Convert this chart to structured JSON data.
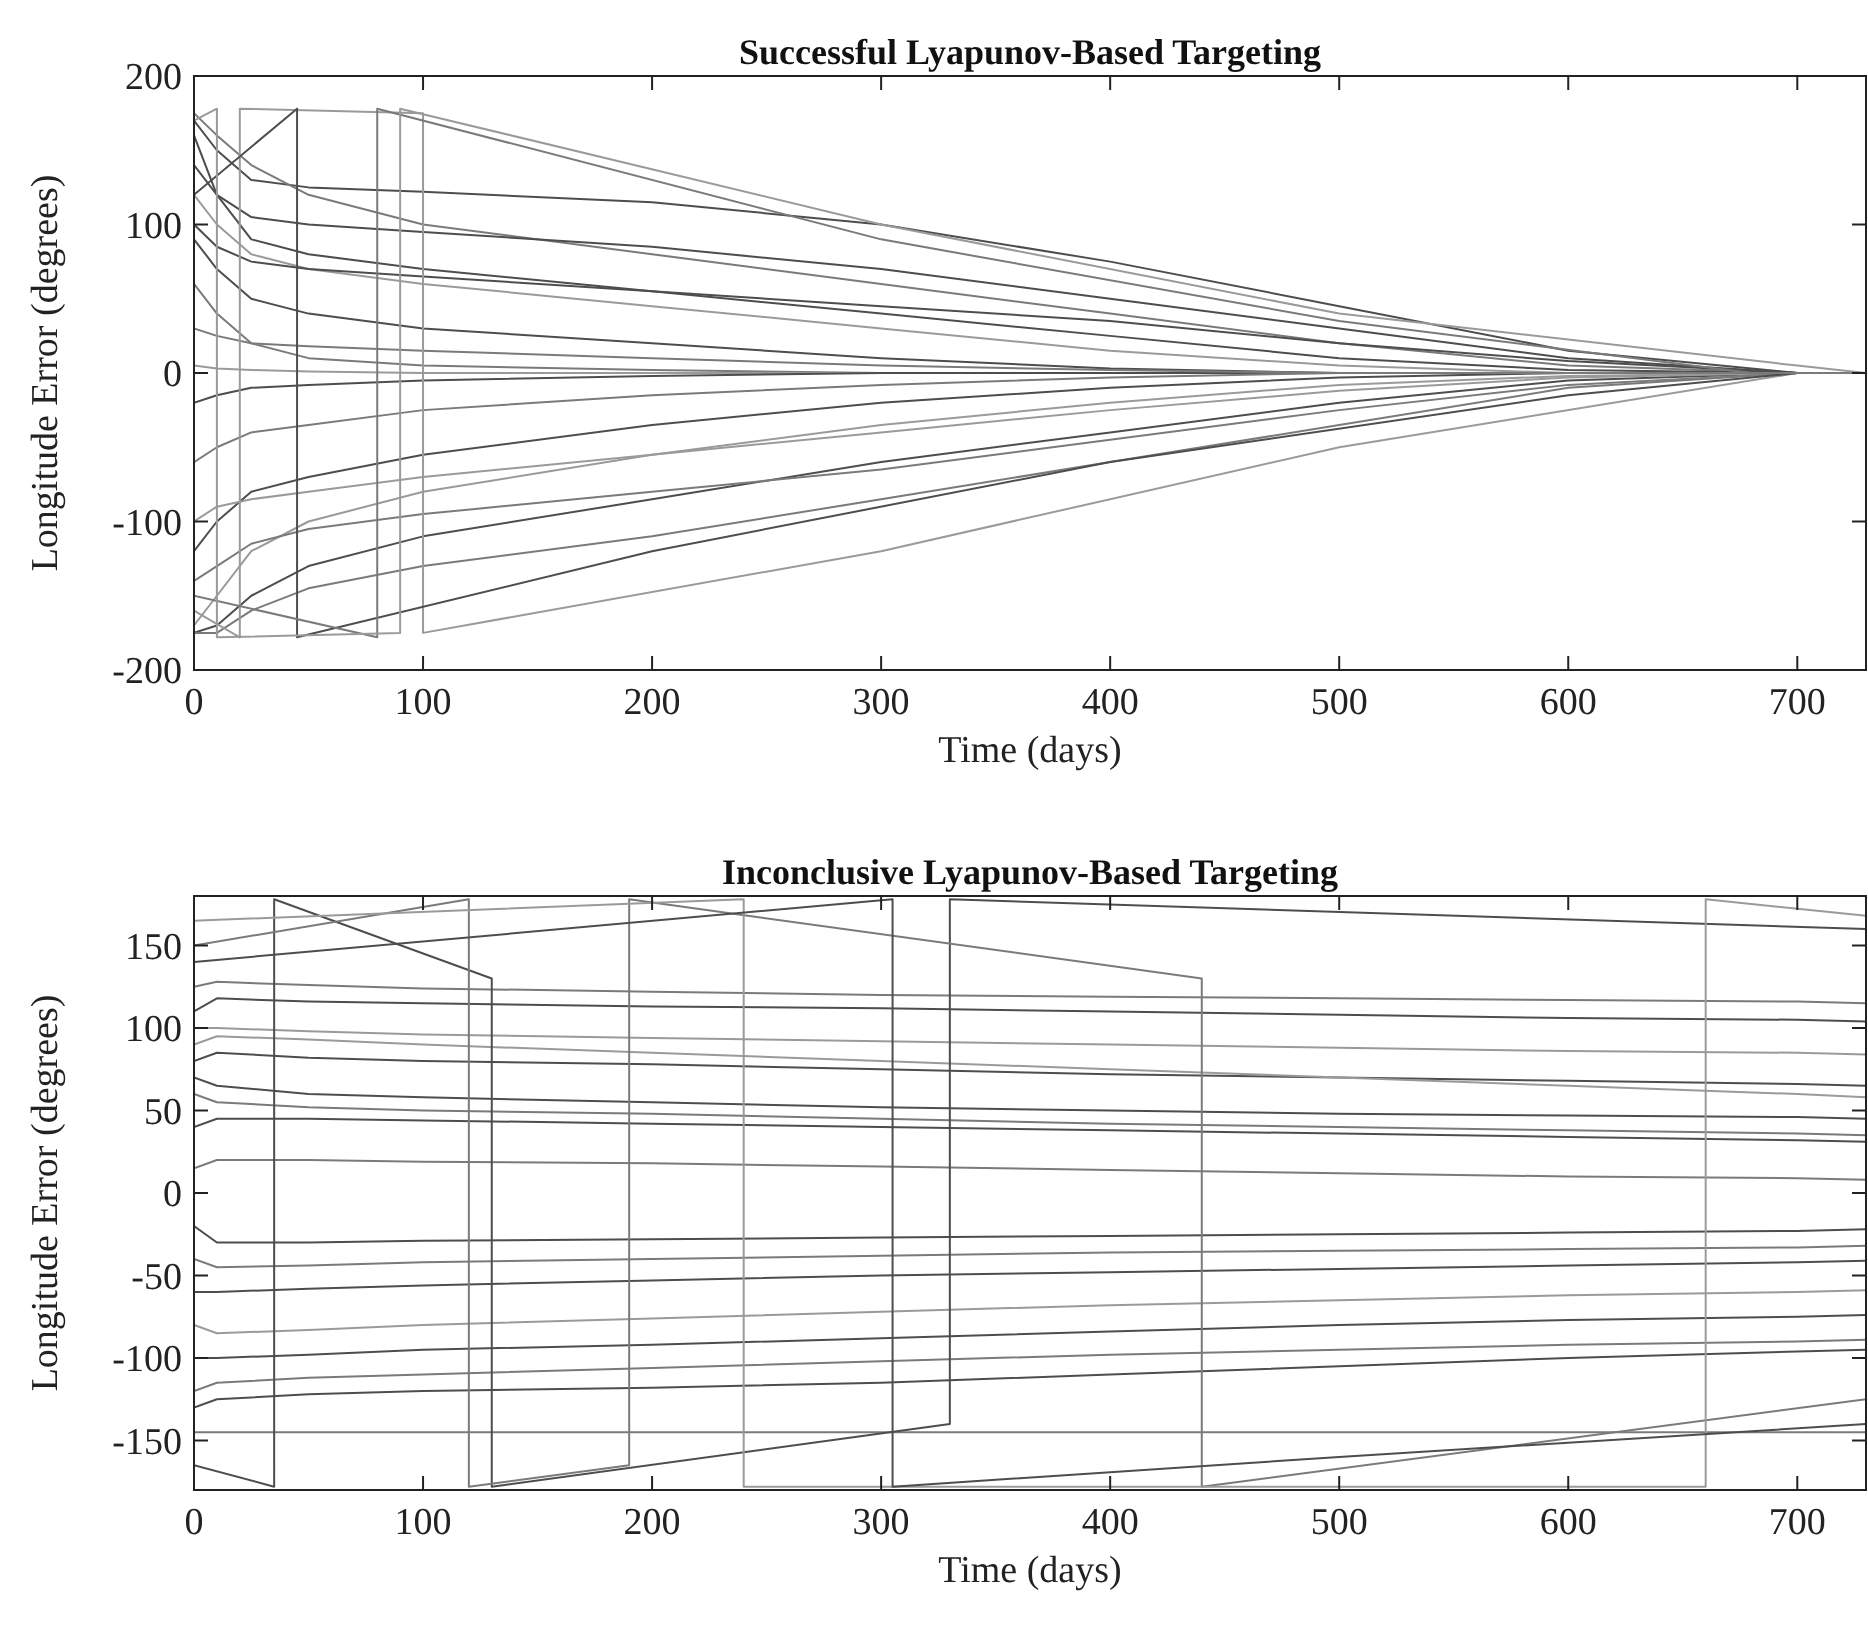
{
  "chart_data": [
    {
      "type": "line",
      "title": "Successful Lyapunov-Based Targeting",
      "xlabel": "Time (days)",
      "ylabel": "Longitude Error (degrees)",
      "xlim": [
        0,
        730
      ],
      "ylim": [
        -200,
        200
      ],
      "xticks": [
        0,
        100,
        200,
        300,
        400,
        500,
        600,
        700
      ],
      "yticks": [
        -200,
        -100,
        0,
        100,
        200
      ],
      "x": [
        0,
        10,
        25,
        50,
        100,
        200,
        300,
        400,
        500,
        600,
        700,
        730
      ],
      "series": [
        {
          "color": "#4d4d4d",
          "values": [
            170,
            150,
            130,
            125,
            122,
            115,
            100,
            75,
            45,
            15,
            0,
            0
          ]
        },
        {
          "color": "#7a7a7a",
          "values": [
            175,
            160,
            140,
            120,
            100,
            80,
            60,
            40,
            20,
            5,
            0,
            0
          ]
        },
        {
          "color": "#4d4d4d",
          "values": [
            160,
            120,
            90,
            80,
            70,
            55,
            40,
            25,
            10,
            2,
            0,
            0
          ]
        },
        {
          "color": "#9a9a9a",
          "values": [
            120,
            100,
            80,
            70,
            60,
            45,
            30,
            15,
            5,
            0,
            0,
            0
          ]
        },
        {
          "color": "#4d4d4d",
          "values": [
            90,
            70,
            50,
            40,
            30,
            20,
            10,
            3,
            0,
            0,
            0,
            0
          ]
        },
        {
          "color": "#7a7a7a",
          "values": [
            60,
            40,
            20,
            10,
            5,
            2,
            0,
            0,
            0,
            0,
            0,
            0
          ]
        },
        {
          "color": "#9a9a9a",
          "values": [
            5,
            3,
            2,
            1,
            0,
            0,
            0,
            0,
            0,
            0,
            0,
            0
          ]
        },
        {
          "color": "#4d4d4d",
          "values": [
            -20,
            -15,
            -10,
            -8,
            -5,
            -2,
            0,
            0,
            0,
            0,
            0,
            0
          ]
        },
        {
          "color": "#7a7a7a",
          "values": [
            -60,
            -50,
            -40,
            -35,
            -25,
            -15,
            -8,
            -3,
            0,
            0,
            0,
            0
          ]
        },
        {
          "color": "#4d4d4d",
          "values": [
            -120,
            -100,
            -80,
            -70,
            -55,
            -35,
            -20,
            -10,
            -3,
            0,
            0,
            0
          ]
        },
        {
          "color": "#9a9a9a",
          "values": [
            -170,
            -150,
            -120,
            -100,
            -80,
            -55,
            -35,
            -20,
            -8,
            -2,
            0,
            0
          ]
        },
        {
          "color": "#4d4d4d",
          "values": [
            -175,
            -170,
            -150,
            -130,
            -110,
            -85,
            -60,
            -40,
            -20,
            -5,
            0,
            0
          ]
        },
        {
          "color": "#7a7a7a",
          "values": [
            -175,
            -175,
            -160,
            -145,
            -130,
            -110,
            -85,
            -60,
            -35,
            -10,
            0,
            0
          ]
        },
        {
          "color": "#4d4d4d",
          "values": [
            140,
            120,
            105,
            100,
            95,
            85,
            70,
            50,
            30,
            10,
            0,
            0
          ]
        },
        {
          "color": "#9a9a9a",
          "values": [
            -100,
            -90,
            -85,
            -80,
            -70,
            -55,
            -40,
            -25,
            -12,
            -3,
            0,
            0
          ]
        },
        {
          "color": "#7a7a7a",
          "values": [
            30,
            25,
            20,
            18,
            15,
            10,
            5,
            2,
            0,
            0,
            0,
            0
          ]
        },
        {
          "color": "#4d4d4d",
          "values": [
            100,
            85,
            75,
            70,
            65,
            55,
            45,
            35,
            20,
            8,
            0,
            0
          ]
        },
        {
          "color": "#7a7a7a",
          "values": [
            -140,
            -130,
            -115,
            -105,
            -95,
            -80,
            -65,
            -45,
            -25,
            -8,
            0,
            0
          ]
        },
        {
          "color": "#9a9a9a",
          "x": [
            0,
            20,
            20,
            100,
            100,
            300,
            500,
            700,
            730
          ],
          "values": [
            -160,
            -178,
            178,
            175,
            -175,
            -120,
            -50,
            0,
            0
          ]
        },
        {
          "color": "#4d4d4d",
          "x": [
            0,
            45,
            45,
            200,
            400,
            600,
            700,
            730
          ],
          "values": [
            120,
            178,
            -178,
            -120,
            -60,
            -15,
            0,
            0
          ]
        },
        {
          "color": "#7a7a7a",
          "x": [
            0,
            80,
            80,
            300,
            500,
            680,
            730
          ],
          "values": [
            -150,
            -178,
            178,
            90,
            35,
            0,
            0
          ]
        },
        {
          "color": "#9a9a9a",
          "x": [
            0,
            10,
            10,
            90,
            90,
            300,
            500,
            700,
            730
          ],
          "values": [
            170,
            178,
            -178,
            -175,
            178,
            100,
            40,
            5,
            0
          ]
        }
      ]
    },
    {
      "type": "line",
      "title": "Inconclusive Lyapunov-Based Targeting",
      "xlabel": "Time (days)",
      "ylabel": "Longitude Error (degrees)",
      "xlim": [
        0,
        730
      ],
      "ylim": [
        -180,
        180
      ],
      "xticks": [
        0,
        100,
        200,
        300,
        400,
        500,
        600,
        700
      ],
      "yticks": [
        -150,
        -100,
        -50,
        0,
        50,
        100,
        150
      ],
      "x": [
        0,
        10,
        50,
        100,
        200,
        300,
        400,
        500,
        600,
        700,
        730
      ],
      "series": [
        {
          "color": "#7a7a7a",
          "values": [
            15,
            20,
            20,
            19,
            18,
            16,
            14,
            12,
            10,
            9,
            8
          ]
        },
        {
          "color": "#4d4d4d",
          "values": [
            40,
            45,
            45,
            44,
            42,
            40,
            38,
            36,
            34,
            32,
            31
          ]
        },
        {
          "color": "#7a7a7a",
          "values": [
            60,
            55,
            52,
            50,
            48,
            45,
            42,
            40,
            38,
            36,
            35
          ]
        },
        {
          "color": "#4d4d4d",
          "values": [
            80,
            85,
            82,
            80,
            78,
            75,
            72,
            70,
            68,
            66,
            65
          ]
        },
        {
          "color": "#9a9a9a",
          "values": [
            100,
            100,
            98,
            96,
            94,
            92,
            90,
            88,
            86,
            85,
            84
          ]
        },
        {
          "color": "#4d4d4d",
          "values": [
            110,
            118,
            116,
            115,
            113,
            112,
            110,
            108,
            106,
            105,
            104
          ]
        },
        {
          "color": "#7a7a7a",
          "values": [
            125,
            128,
            126,
            124,
            122,
            120,
            119,
            118,
            117,
            116,
            115
          ]
        },
        {
          "color": "#4d4d4d",
          "values": [
            70,
            65,
            60,
            58,
            55,
            52,
            50,
            48,
            47,
            46,
            45
          ]
        },
        {
          "color": "#9a9a9a",
          "values": [
            90,
            95,
            93,
            90,
            85,
            80,
            75,
            70,
            65,
            60,
            58
          ]
        },
        {
          "color": "#4d4d4d",
          "values": [
            -20,
            -30,
            -30,
            -29,
            -28,
            -27,
            -26,
            -25,
            -24,
            -23,
            -22
          ]
        },
        {
          "color": "#7a7a7a",
          "values": [
            -40,
            -45,
            -44,
            -42,
            -40,
            -38,
            -36,
            -35,
            -34,
            -33,
            -32
          ]
        },
        {
          "color": "#4d4d4d",
          "values": [
            -60,
            -60,
            -58,
            -56,
            -53,
            -50,
            -48,
            -46,
            -44,
            -42,
            -41
          ]
        },
        {
          "color": "#9a9a9a",
          "values": [
            -80,
            -85,
            -83,
            -80,
            -76,
            -72,
            -68,
            -65,
            -62,
            -60,
            -59
          ]
        },
        {
          "color": "#4d4d4d",
          "values": [
            -100,
            -100,
            -98,
            -95,
            -92,
            -88,
            -84,
            -80,
            -77,
            -75,
            -74
          ]
        },
        {
          "color": "#7a7a7a",
          "values": [
            -120,
            -115,
            -112,
            -110,
            -106,
            -102,
            -98,
            -95,
            -92,
            -90,
            -89
          ]
        },
        {
          "color": "#4d4d4d",
          "values": [
            -130,
            -125,
            -122,
            -120,
            -118,
            -115,
            -110,
            -105,
            -100,
            -96,
            -95
          ]
        },
        {
          "color": "#7a7a7a",
          "values": [
            -145,
            -145,
            -145,
            -145,
            -145,
            -145,
            -145,
            -145,
            -145,
            -145,
            -145
          ]
        },
        {
          "color": "#4d4d4d",
          "x": [
            0,
            35,
            35,
            130,
            130,
            330,
            330,
            730
          ],
          "values": [
            -165,
            -178,
            178,
            130,
            -178,
            -140,
            178,
            160
          ]
        },
        {
          "color": "#7a7a7a",
          "x": [
            0,
            120,
            120,
            190,
            190,
            440,
            440,
            730
          ],
          "values": [
            150,
            178,
            -178,
            -165,
            178,
            130,
            -178,
            -125
          ]
        },
        {
          "color": "#9a9a9a",
          "x": [
            0,
            240,
            240,
            660,
            660,
            730
          ],
          "values": [
            165,
            178,
            -178,
            -178,
            178,
            168
          ]
        },
        {
          "color": "#4d4d4d",
          "x": [
            0,
            305,
            305,
            500,
            730
          ],
          "values": [
            140,
            178,
            -178,
            -160,
            -140
          ]
        }
      ]
    }
  ]
}
